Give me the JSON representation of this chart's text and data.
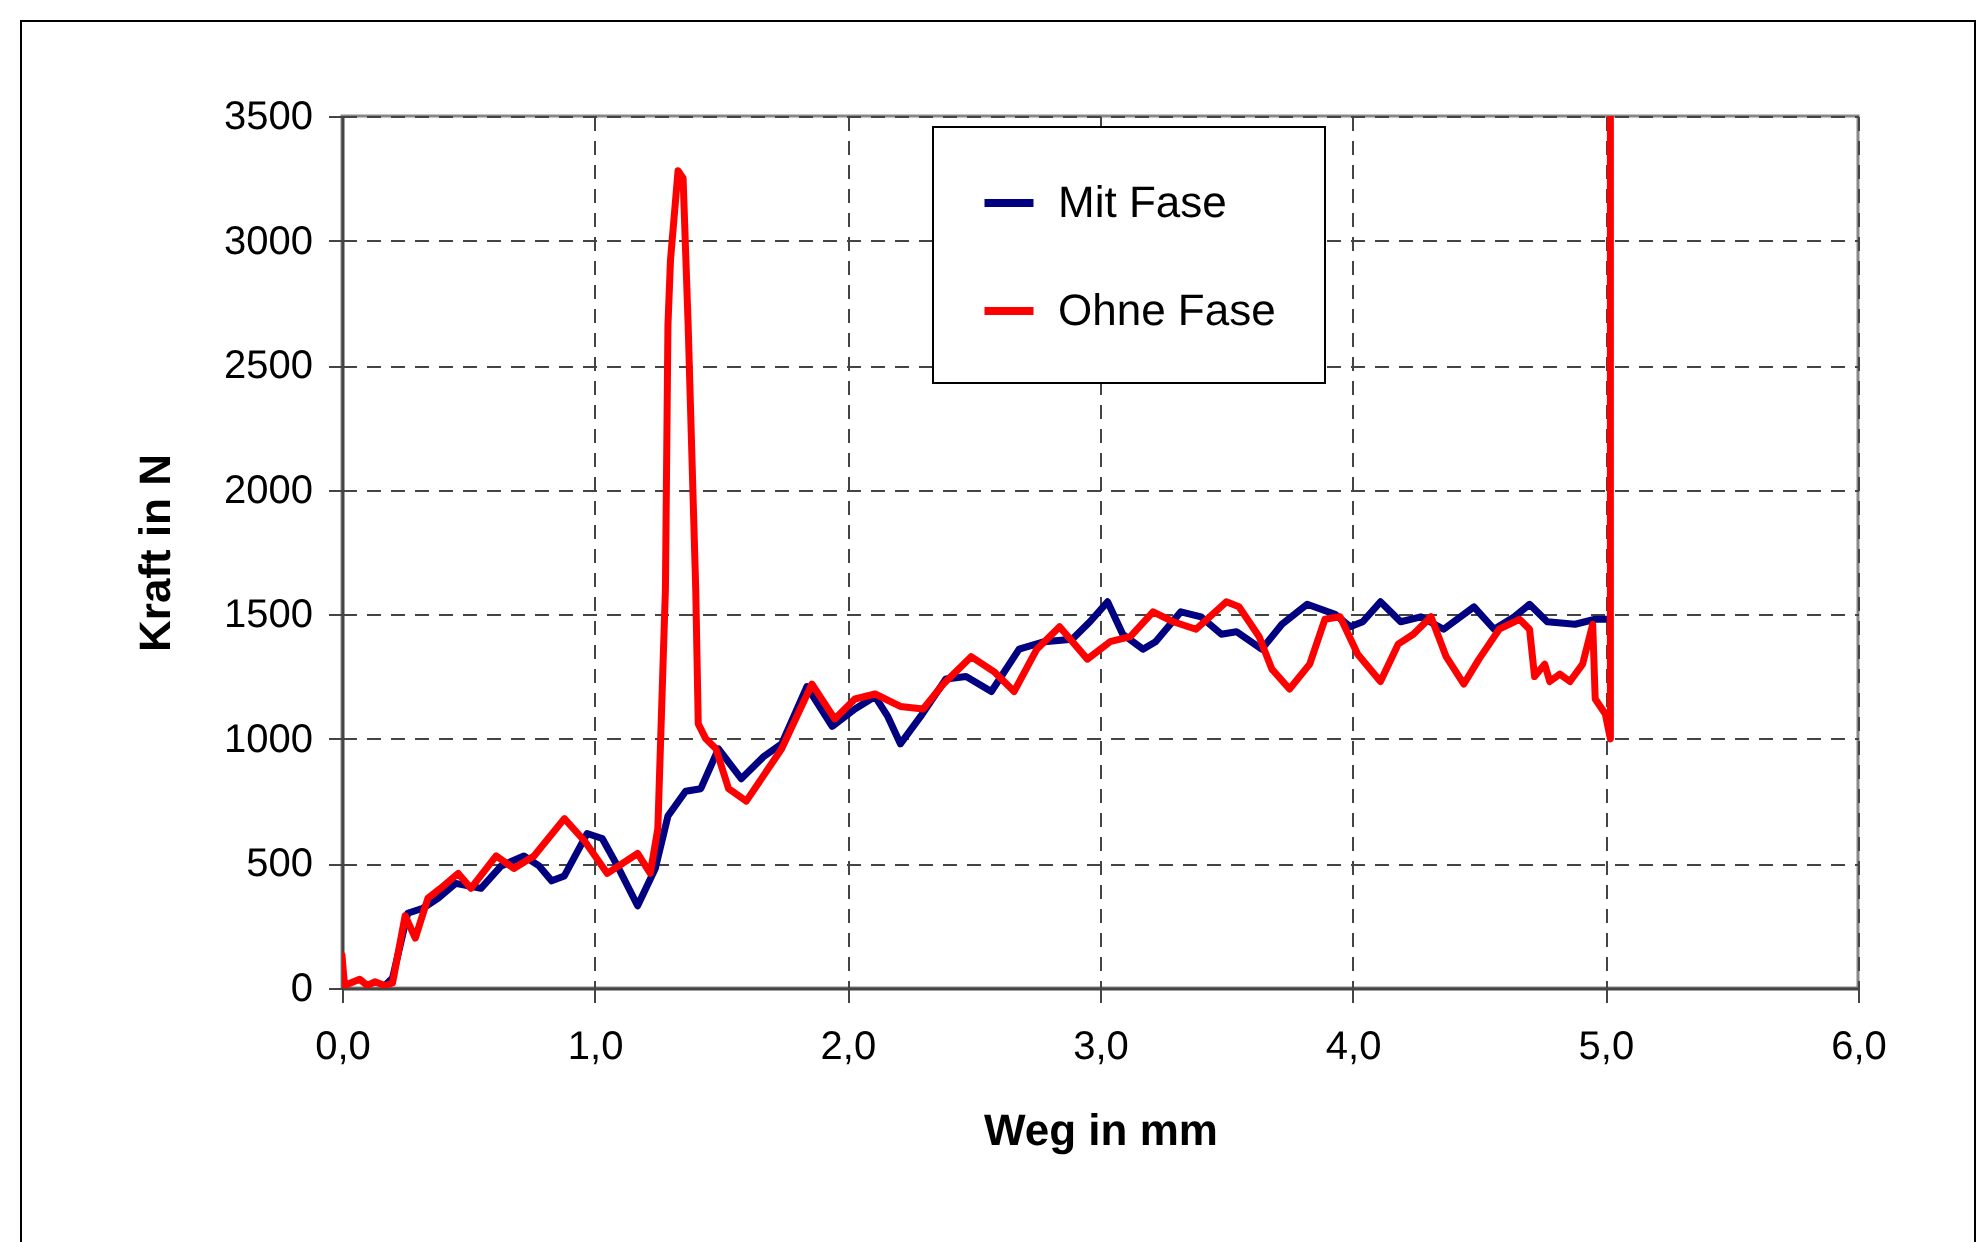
{
  "chart_data": {
    "type": "line",
    "xlabel": "Weg in mm",
    "ylabel": "Kraft in N",
    "xlim": [
      0,
      6
    ],
    "xticks": [
      {
        "value": 0,
        "label": "0,0"
      },
      {
        "value": 1,
        "label": "1,0"
      },
      {
        "value": 2,
        "label": "2,0"
      },
      {
        "value": 3,
        "label": "3,0"
      },
      {
        "value": 4,
        "label": "4,0"
      },
      {
        "value": 5,
        "label": "5,0"
      },
      {
        "value": 6,
        "label": "6,0"
      }
    ],
    "ylim": [
      0,
      3500
    ],
    "yticks": [
      0,
      500,
      1000,
      1500,
      2000,
      2500,
      3000,
      3500
    ],
    "grid": true,
    "legend": "top",
    "line_style": "solid",
    "marker": "none",
    "series": [
      {
        "name": "Mit Fase",
        "color": "#000080",
        "x": [
          0.17,
          0.2,
          0.26,
          0.32,
          0.38,
          0.45,
          0.5,
          0.55,
          0.63,
          0.72,
          0.78,
          0.83,
          0.88,
          0.97,
          1.03,
          1.09,
          1.17,
          1.24,
          1.29,
          1.36,
          1.42,
          1.49,
          1.58,
          1.67,
          1.74,
          1.84,
          1.94,
          2.03,
          2.11,
          2.16,
          2.21,
          2.29,
          2.39,
          2.47,
          2.57,
          2.68,
          2.78,
          2.89,
          2.96,
          3.03,
          3.09,
          3.17,
          3.22,
          3.32,
          3.4,
          3.48,
          3.54,
          3.64,
          3.72,
          3.82,
          3.93,
          3.99,
          4.04,
          4.11,
          4.19,
          4.27,
          4.36,
          4.48,
          4.56,
          4.64,
          4.7,
          4.77,
          4.88,
          4.96,
          5.01
        ],
        "values": [
          10,
          40,
          300,
          320,
          360,
          420,
          410,
          400,
          490,
          530,
          490,
          430,
          450,
          620,
          600,
          490,
          330,
          480,
          690,
          790,
          800,
          960,
          840,
          930,
          980,
          1210,
          1050,
          1120,
          1170,
          1090,
          980,
          1090,
          1240,
          1250,
          1190,
          1360,
          1390,
          1400,
          1470,
          1550,
          1420,
          1360,
          1390,
          1510,
          1490,
          1420,
          1430,
          1360,
          1460,
          1540,
          1500,
          1450,
          1470,
          1550,
          1470,
          1490,
          1440,
          1530,
          1440,
          1490,
          1540,
          1470,
          1460,
          1480,
          1480
        ]
      },
      {
        "name": "Ohne Fase",
        "color": "#ff0000",
        "x": [
          0,
          0.01,
          0.07,
          0.1,
          0.13,
          0.17,
          0.2,
          0.25,
          0.29,
          0.34,
          0.39,
          0.46,
          0.51,
          0.61,
          0.68,
          0.76,
          0.88,
          0.96,
          1.05,
          1.17,
          1.22,
          1.25,
          1.28,
          1.29,
          1.3,
          1.33,
          1.35,
          1.37,
          1.4,
          1.41,
          1.44,
          1.48,
          1.53,
          1.6,
          1.74,
          1.86,
          1.95,
          2.03,
          2.11,
          2.21,
          2.3,
          2.38,
          2.49,
          2.58,
          2.66,
          2.75,
          2.84,
          2.95,
          3.04,
          3.12,
          3.21,
          3.29,
          3.38,
          3.5,
          3.55,
          3.63,
          3.68,
          3.75,
          3.83,
          3.89,
          3.95,
          4.02,
          4.11,
          4.18,
          4.24,
          4.31,
          4.37,
          4.44,
          4.5,
          4.58,
          4.66,
          4.7,
          4.72,
          4.76,
          4.78,
          4.82,
          4.86,
          4.91,
          4.95,
          4.96,
          5.0,
          5.02,
          5.02
        ],
        "values": [
          130,
          10,
          35,
          10,
          25,
          10,
          20,
          290,
          200,
          360,
          400,
          460,
          400,
          530,
          480,
          530,
          680,
          590,
          460,
          540,
          460,
          640,
          1600,
          2660,
          2920,
          3280,
          3250,
          2660,
          1600,
          1060,
          1000,
          960,
          800,
          750,
          960,
          1220,
          1080,
          1160,
          1180,
          1130,
          1120,
          1220,
          1330,
          1270,
          1190,
          1360,
          1450,
          1320,
          1390,
          1410,
          1510,
          1470,
          1440,
          1550,
          1530,
          1410,
          1280,
          1200,
          1300,
          1480,
          1490,
          1340,
          1230,
          1380,
          1420,
          1490,
          1330,
          1220,
          1320,
          1440,
          1480,
          1440,
          1250,
          1300,
          1230,
          1260,
          1230,
          1300,
          1460,
          1160,
          1100,
          1000,
          3500
        ]
      }
    ]
  }
}
